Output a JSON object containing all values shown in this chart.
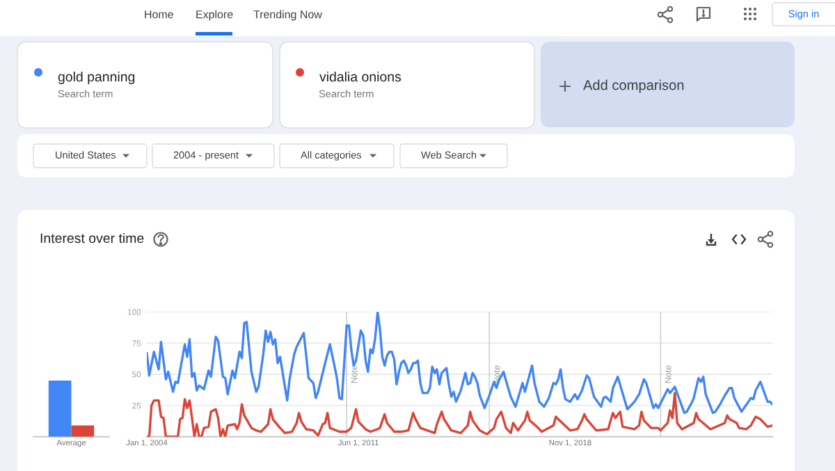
{
  "chart_data": [
    {
      "type": "bar",
      "title": "Interest over time",
      "categories": [
        "Average"
      ],
      "series": [
        {
          "color": "#4285f4",
          "values": [
            45
          ]
        },
        {
          "color": "#db4437",
          "values": [
            9
          ]
        }
      ],
      "ylim": [
        0,
        100
      ],
      "tick_labels": "x"
    },
    {
      "type": "line",
      "series": [
        {
          "name": "gold panning",
          "color": "#4285f4",
          "x": [
            "2004-01",
            "2004-02",
            "2004-04",
            "2004-06",
            "2004-07",
            "2004-09",
            "2004-10",
            "2004-12",
            "2005-01",
            "2005-02",
            "2005-05",
            "2005-06",
            "2005-07",
            "2005-08",
            "2005-09",
            "2005-10",
            "2005-11",
            "2006-01",
            "2006-03",
            "2006-04",
            "2006-06",
            "2006-07",
            "2006-09",
            "2006-10",
            "2006-11",
            "2007-01",
            "2007-02",
            "2007-04",
            "2007-05",
            "2007-06",
            "2007-07",
            "2007-09",
            "2007-11",
            "2007-12",
            "2008-02",
            "2008-03",
            "2008-04",
            "2008-05",
            "2008-06",
            "2008-07",
            "2008-08",
            "2008-09",
            "2008-12",
            "2009-01",
            "2009-03",
            "2009-04",
            "2009-07",
            "2009-09",
            "2009-11",
            "2009-12",
            "2010-01",
            "2010-02",
            "2010-04",
            "2010-06",
            "2010-08",
            "2010-09",
            "2010-10",
            "2010-11",
            "2011-01",
            "2011-02",
            "2011-03",
            "2011-04",
            "2011-05",
            "2011-07",
            "2011-08",
            "2011-09",
            "2011-10",
            "2011-11",
            "2011-12",
            "2012-01",
            "2012-02",
            "2012-03",
            "2012-04",
            "2012-05",
            "2012-06",
            "2012-07",
            "2012-08",
            "2012-09",
            "2012-10",
            "2012-11",
            "2012-12",
            "2013-01",
            "2013-02",
            "2013-03",
            "2013-04",
            "2013-05",
            "2013-06",
            "2013-07",
            "2013-08",
            "2013-09",
            "2013-11",
            "2013-12",
            "2014-01",
            "2014-02",
            "2014-03",
            "2014-04",
            "2014-05",
            "2014-07",
            "2014-08",
            "2014-09",
            "2014-10",
            "2014-11",
            "2015-01",
            "2015-03",
            "2015-04",
            "2015-05",
            "2015-06",
            "2015-07",
            "2015-08",
            "2015-09",
            "2015-11",
            "2016-01",
            "2016-03",
            "2016-04",
            "2016-05",
            "2016-07",
            "2016-08",
            "2016-10",
            "2016-12",
            "2017-03",
            "2017-04",
            "2017-05",
            "2017-07",
            "2017-08",
            "2017-10",
            "2017-12",
            "2018-02",
            "2018-04",
            "2018-05",
            "2018-06",
            "2018-07",
            "2018-08",
            "2018-09",
            "2018-11",
            "2019-01",
            "2019-02",
            "2019-04",
            "2019-05",
            "2019-06",
            "2019-07",
            "2019-09",
            "2019-12",
            "2020-01",
            "2020-02",
            "2020-04",
            "2020-05",
            "2020-07",
            "2020-11",
            "2021-02",
            "2021-04",
            "2021-06",
            "2021-07",
            "2021-10",
            "2021-11",
            "2021-12",
            "2022-04",
            "2022-05",
            "2022-07",
            "2022-11",
            "2022-12",
            "2023-02",
            "2023-03",
            "2023-05",
            "2023-06",
            "2023-07",
            "2023-08",
            "2023-11",
            "2023-12",
            "2024-02",
            "2024-04",
            "2024-06",
            "2024-07",
            "2024-08",
            "2024-11",
            "2025-03",
            "2025-04",
            "2025-05",
            "2025-07",
            "2025-10",
            "2025-11",
            "2025-12"
          ],
          "values": [
            67,
            49,
            68,
            54,
            76,
            46,
            52,
            36,
            44,
            43,
            74,
            64,
            78,
            48,
            51,
            37,
            41,
            38,
            53,
            48,
            80,
            77,
            48,
            47,
            34,
            53,
            47,
            68,
            63,
            91,
            92,
            52,
            36,
            40,
            67,
            85,
            76,
            84,
            74,
            78,
            59,
            64,
            29,
            46,
            66,
            72,
            83,
            47,
            43,
            31,
            36,
            44,
            59,
            74,
            56,
            46,
            31,
            30,
            89,
            89,
            70,
            57,
            61,
            85,
            81,
            61,
            52,
            70,
            67,
            79,
            100,
            87,
            64,
            57,
            65,
            68,
            68,
            62,
            42,
            52,
            59,
            61,
            57,
            51,
            54,
            59,
            59,
            61,
            43,
            35,
            35,
            39,
            56,
            51,
            54,
            42,
            51,
            55,
            42,
            32,
            36,
            28,
            37,
            51,
            42,
            43,
            51,
            48,
            43,
            33,
            23,
            33,
            44,
            39,
            45,
            52,
            45,
            32,
            24,
            43,
            36,
            43,
            57,
            43,
            28,
            24,
            31,
            43,
            42,
            46,
            54,
            39,
            30,
            28,
            34,
            30,
            37,
            43,
            49,
            47,
            32,
            24,
            31,
            32,
            28,
            39,
            48,
            22,
            28,
            34,
            46,
            43,
            23,
            26,
            23,
            38,
            35,
            40,
            19,
            20,
            27,
            31,
            47,
            44,
            48,
            34,
            19,
            20,
            26,
            33,
            39,
            39,
            31,
            20,
            31,
            30,
            37,
            44,
            28,
            28,
            26
          ]
        },
        {
          "name": "vidalia onions",
          "color": "#db4437",
          "x": [
            "2004-01",
            "2004-02",
            "2004-03",
            "2004-04",
            "2004-06",
            "2004-07",
            "2004-08",
            "2004-09",
            "2005-02",
            "2005-03",
            "2005-04",
            "2005-05",
            "2005-06",
            "2005-07",
            "2005-08",
            "2005-09",
            "2005-10",
            "2005-11",
            "2005-12",
            "2006-01",
            "2006-03",
            "2006-04",
            "2006-06",
            "2006-07",
            "2006-08",
            "2006-09",
            "2006-10",
            "2006-11",
            "2007-02",
            "2007-03",
            "2007-04",
            "2007-05",
            "2007-06",
            "2007-09",
            "2007-11",
            "2008-01",
            "2008-04",
            "2008-05",
            "2008-06",
            "2008-09",
            "2008-11",
            "2009-02",
            "2009-04",
            "2009-05",
            "2009-06",
            "2009-08",
            "2009-11",
            "2010-01",
            "2010-03",
            "2010-04",
            "2010-05",
            "2010-06",
            "2010-10",
            "2011-01",
            "2011-03",
            "2011-05",
            "2011-06",
            "2011-09",
            "2011-11",
            "2012-02",
            "2012-03",
            "2012-05",
            "2012-06",
            "2012-09",
            "2012-12",
            "2013-03",
            "2013-05",
            "2013-06",
            "2013-08",
            "2014-02",
            "2014-03",
            "2014-05",
            "2014-06",
            "2014-09",
            "2015-01",
            "2015-04",
            "2015-05",
            "2015-06",
            "2015-09",
            "2015-12",
            "2016-03",
            "2016-04",
            "2016-06",
            "2016-08",
            "2016-10",
            "2016-11",
            "2017-01",
            "2017-04",
            "2017-05",
            "2017-06",
            "2017-09",
            "2017-11",
            "2018-04",
            "2018-05",
            "2018-06",
            "2018-11",
            "2019-02",
            "2019-04",
            "2019-05",
            "2019-06",
            "2019-10",
            "2020-03",
            "2020-04",
            "2020-05",
            "2020-06",
            "2020-08",
            "2020-09",
            "2021-02",
            "2021-04",
            "2021-05",
            "2021-06",
            "2021-09",
            "2021-12",
            "2022-01",
            "2022-04",
            "2022-05",
            "2022-06",
            "2022-07",
            "2022-08",
            "2022-10",
            "2023-03",
            "2023-04",
            "2023-05",
            "2023-10",
            "2024-04",
            "2024-05",
            "2024-06",
            "2024-09",
            "2024-10",
            "2025-01",
            "2025-03",
            "2025-05",
            "2025-07",
            "2025-10",
            "2025-12"
          ],
          "values": [
            0,
            0,
            25,
            29,
            29,
            16,
            15,
            0,
            0,
            14,
            15,
            30,
            23,
            29,
            15,
            0,
            10,
            0,
            0,
            7,
            8,
            20,
            22,
            15,
            0,
            6,
            0,
            9,
            10,
            6,
            11,
            26,
            17,
            7,
            5,
            4,
            10,
            22,
            14,
            7,
            3,
            4,
            11,
            19,
            12,
            6,
            5,
            1,
            10,
            11,
            19,
            7,
            4,
            4,
            7,
            22,
            12,
            6,
            4,
            6,
            7,
            18,
            11,
            4,
            4,
            5,
            19,
            14,
            7,
            3,
            10,
            20,
            14,
            5,
            3,
            9,
            20,
            13,
            5,
            2,
            7,
            14,
            20,
            7,
            3,
            11,
            5,
            13,
            20,
            13,
            8,
            4,
            9,
            16,
            14,
            5,
            6,
            13,
            18,
            14,
            5,
            6,
            13,
            19,
            15,
            20,
            8,
            6,
            9,
            20,
            13,
            7,
            7,
            5,
            11,
            21,
            15,
            35,
            11,
            6,
            11,
            19,
            14,
            6,
            11,
            17,
            14,
            11,
            7,
            6,
            9,
            16,
            14,
            8,
            9
          ]
        }
      ],
      "xlim": [
        "2004-01",
        "2025-12"
      ],
      "xticks": [
        {
          "value": "2004-01-01",
          "label": "Jan 1, 2004"
        },
        {
          "value": "2011-06-01",
          "label": "Jun 1, 2011"
        },
        {
          "value": "2018-11-01",
          "label": "Nov 1, 2018"
        }
      ],
      "ylim": [
        0,
        100
      ],
      "yticks": [
        25,
        50,
        75,
        100
      ],
      "grid": "y",
      "legend": "top",
      "line_style": "solid",
      "ref_lines": [
        {
          "axis": "x",
          "value": "2011-01-01",
          "label": "Note"
        },
        {
          "axis": "x",
          "value": "2016-01-01",
          "label": "Note"
        },
        {
          "axis": "x",
          "value": "2022-01-01",
          "label": "Note"
        }
      ],
      "annotations": [
        "Search term",
        "Search term",
        "Home",
        "Explore",
        "Trending Now",
        "Sign in",
        "Add comparison",
        "United States",
        "2004 - present",
        "All categories",
        "Web Search"
      ]
    }
  ]
}
